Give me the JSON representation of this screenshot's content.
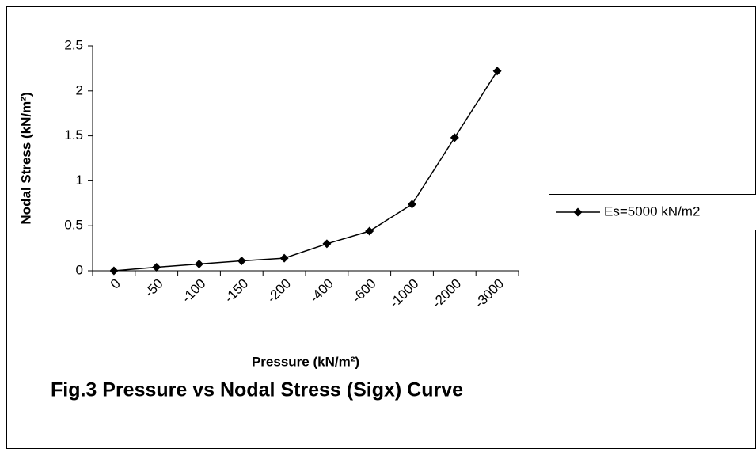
{
  "chart_data": {
    "type": "line",
    "title": "Fig.3 Pressure vs Nodal Stress (Sigx) Curve",
    "x_label": "Pressure (kN/m²)",
    "y_label": "Nodal Stress (kN/m²)",
    "categories": [
      "0",
      "-50",
      "-100",
      "-150",
      "-200",
      "-400",
      "-600",
      "-1000",
      "-2000",
      "-3000"
    ],
    "series": [
      {
        "name": "Es=5000 kN/m2",
        "color": "#000000",
        "values": [
          0,
          0.04,
          0.075,
          0.11,
          0.14,
          0.3,
          0.44,
          0.74,
          1.48,
          2.22
        ]
      }
    ],
    "ylim": [
      0,
      2.5
    ],
    "yticks": [
      0,
      0.5,
      1,
      1.5,
      2,
      2.5
    ],
    "grid": false,
    "legend": "right"
  }
}
